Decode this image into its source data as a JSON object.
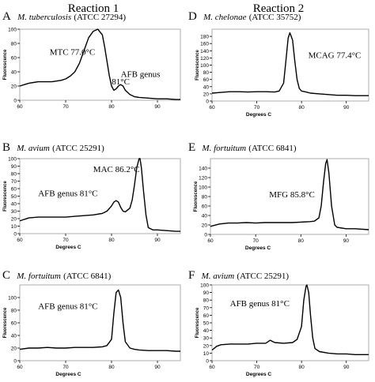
{
  "figure": {
    "column_headers": [
      "Reaction 1",
      "Reaction 2"
    ]
  },
  "chart_data": [
    {
      "type": "line",
      "panel_letter": "A",
      "species": "M. tuberculosis",
      "strain": "(ATCC 27294)",
      "xlabel": "",
      "ylabel": "Fluorescence",
      "xlim": [
        60,
        95
      ],
      "ylim": [
        0,
        100
      ],
      "xticks": [
        60,
        70,
        80,
        90
      ],
      "yticks": [
        0,
        20,
        40,
        60,
        80,
        100
      ],
      "series": [
        {
          "x": [
            60,
            61,
            62,
            63,
            64,
            65,
            66,
            67,
            68,
            69,
            70,
            71,
            72,
            73,
            74,
            75,
            76,
            77,
            78,
            78.5,
            79,
            79.5,
            80,
            80.5,
            81,
            81.5,
            82,
            82.5,
            83,
            84,
            85,
            86,
            88,
            90,
            92,
            94,
            95
          ],
          "values": [
            20,
            22,
            24,
            25,
            26,
            26,
            26,
            26,
            27,
            28,
            30,
            34,
            40,
            52,
            70,
            88,
            97,
            100,
            92,
            75,
            55,
            35,
            20,
            14,
            16,
            20,
            22,
            20,
            14,
            8,
            5,
            4,
            3,
            2,
            2,
            1,
            1
          ]
        }
      ],
      "annotations": [
        {
          "text": "MTC 77.0°C",
          "x": 66.5,
          "y": 64
        },
        {
          "text": "AFB genus",
          "x": 82,
          "y": 33
        },
        {
          "text": "81°C",
          "x": 82,
          "y": 22
        }
      ]
    },
    {
      "type": "line",
      "panel_letter": "D",
      "species": "M. chelonae",
      "strain": "(ATCC 35752)",
      "xlabel": "Degrees C",
      "ylabel": "Fluorescence",
      "xlim": [
        60,
        95
      ],
      "ylim": [
        0,
        200
      ],
      "xticks": [
        60,
        70,
        80,
        90
      ],
      "yticks": [
        0,
        20,
        40,
        60,
        80,
        100,
        120,
        140,
        160,
        180
      ],
      "series": [
        {
          "x": [
            60,
            62,
            64,
            66,
            68,
            70,
            72,
            74,
            75,
            76,
            76.5,
            77,
            77.4,
            78,
            78.5,
            79,
            79.5,
            80,
            81,
            82,
            84,
            86,
            88,
            90,
            92,
            95
          ],
          "values": [
            22,
            24,
            26,
            26,
            25,
            26,
            26,
            25,
            28,
            50,
            110,
            175,
            190,
            170,
            110,
            60,
            35,
            28,
            25,
            22,
            20,
            18,
            16,
            16,
            15,
            15
          ]
        }
      ],
      "annotations": [
        {
          "text": "MCAG 77.4°C",
          "x": 81.5,
          "y": 120
        }
      ]
    },
    {
      "type": "line",
      "panel_letter": "B",
      "species": "M. avium",
      "strain": "(ATCC 25291)",
      "xlabel": "Degrees C",
      "ylabel": "Fluorescence",
      "xlim": [
        60,
        95
      ],
      "ylim": [
        0,
        100
      ],
      "xticks": [
        60,
        70,
        80,
        90
      ],
      "yticks": [
        0,
        10,
        20,
        30,
        40,
        50,
        60,
        70,
        80,
        90,
        100
      ],
      "series": [
        {
          "x": [
            60,
            61,
            62,
            64,
            66,
            68,
            70,
            72,
            74,
            76,
            78,
            79,
            80,
            80.5,
            81,
            81.5,
            82,
            82.5,
            83,
            84,
            84.5,
            85,
            85.5,
            86,
            86.2,
            86.5,
            87,
            87.5,
            88,
            89,
            90,
            92,
            94,
            95
          ],
          "values": [
            17,
            19,
            21,
            22,
            22,
            22,
            22,
            23,
            24,
            25,
            27,
            30,
            37,
            42,
            44,
            42,
            35,
            30,
            29,
            34,
            45,
            65,
            88,
            100,
            100,
            88,
            55,
            25,
            8,
            5,
            5,
            4,
            3,
            3
          ]
        }
      ],
      "annotations": [
        {
          "text": "MAC 86.2°C",
          "x": 76,
          "y": 82
        },
        {
          "text": "AFB genus 81°C",
          "x": 64,
          "y": 50
        }
      ]
    },
    {
      "type": "line",
      "panel_letter": "E",
      "species": "M. fortuitum",
      "strain": "(ATCC 6841)",
      "xlabel": "Degrees C",
      "ylabel": "Fluorescence",
      "xlim": [
        60,
        95
      ],
      "ylim": [
        0,
        160
      ],
      "xticks": [
        60,
        70,
        80,
        90
      ],
      "yticks": [
        0,
        20,
        40,
        60,
        80,
        100,
        120,
        140
      ],
      "series": [
        {
          "x": [
            60,
            62,
            64,
            66,
            68,
            70,
            72,
            74,
            76,
            78,
            80,
            82,
            83,
            84,
            84.5,
            85,
            85.5,
            85.8,
            86.2,
            86.8,
            87.5,
            88,
            90,
            92,
            95
          ],
          "values": [
            17,
            22,
            24,
            24,
            25,
            24,
            25,
            25,
            25,
            25,
            26,
            27,
            28,
            35,
            60,
            110,
            150,
            158,
            130,
            60,
            20,
            15,
            12,
            12,
            10
          ]
        }
      ],
      "annotations": [
        {
          "text": "MFG 85.8°C",
          "x": 73,
          "y": 78
        }
      ]
    },
    {
      "type": "line",
      "panel_letter": "C",
      "species": "M. fortuitum",
      "strain": "(ATCC 6841)",
      "xlabel": "Degrees C",
      "ylabel": "Fluorescence",
      "xlim": [
        60,
        95
      ],
      "ylim": [
        0,
        120
      ],
      "xticks": [
        60,
        70,
        80,
        90
      ],
      "yticks": [
        0,
        20,
        40,
        60,
        80,
        100
      ],
      "series": [
        {
          "x": [
            60,
            62,
            64,
            66,
            68,
            70,
            72,
            74,
            76,
            78,
            79,
            80,
            80.5,
            81,
            81.5,
            82,
            82.5,
            83,
            84,
            85,
            86,
            88,
            90,
            92,
            94,
            95
          ],
          "values": [
            18,
            20,
            20,
            21,
            20,
            20,
            21,
            21,
            21,
            22,
            24,
            34,
            75,
            108,
            112,
            100,
            60,
            30,
            20,
            18,
            17,
            16,
            16,
            16,
            15,
            15
          ]
        }
      ],
      "annotations": [
        {
          "text": "AFB genus 81°C",
          "x": 64,
          "y": 82
        }
      ]
    },
    {
      "type": "line",
      "panel_letter": "F",
      "species": "M. avium",
      "strain": "(ATCC 25291)",
      "xlabel": "Degrees C",
      "ylabel": "Fluorescence",
      "xlim": [
        60,
        95
      ],
      "ylim": [
        0,
        100
      ],
      "xticks": [
        60,
        70,
        80,
        90
      ],
      "yticks": [
        0,
        10,
        20,
        30,
        40,
        50,
        60,
        70,
        80,
        90,
        100
      ],
      "series": [
        {
          "x": [
            60,
            61,
            62,
            64,
            66,
            68,
            70,
            72,
            73,
            74,
            76,
            78,
            79,
            80,
            80.5,
            81,
            81.2,
            81.6,
            82,
            82.5,
            83,
            84,
            86,
            88,
            90,
            92,
            95
          ],
          "values": [
            14,
            19,
            21,
            22,
            22,
            22,
            23,
            23,
            27,
            24,
            23,
            24,
            28,
            45,
            80,
            98,
            100,
            90,
            60,
            30,
            16,
            12,
            10,
            9,
            9,
            8,
            8
          ]
        }
      ],
      "annotations": [
        {
          "text": "AFB genus 81°C",
          "x": 64,
          "y": 72
        }
      ]
    }
  ]
}
